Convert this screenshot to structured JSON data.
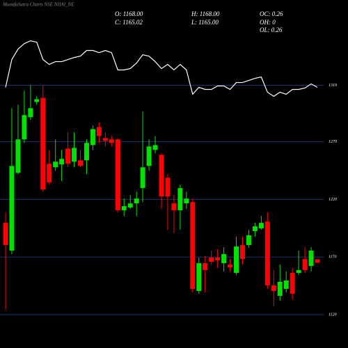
{
  "chart_data": {
    "type": "candlestick",
    "title": "MunafaSutra Charts NSE NHAI_NE",
    "info": [
      "O: 1168.00",
      "H: 1168.00",
      "OC: 0.26",
      "C: 1165.02",
      "L: 1165.00",
      "OH: 0",
      "OL: 0.26"
    ],
    "open": [
      1199.6,
      1175.5,
      1243,
      1272,
      1291.3,
      1304.5,
      1308.1,
      1250.9,
      1247.8,
      1250.3,
      1264.1,
      1252.7,
      1253.9,
      1253.9,
      1267.1,
      1282.8,
      1273.2,
      1272,
      1272,
      1210.5,
      1212.9,
      1216.5,
      1229.8,
      1249,
      1262.9,
      1258.7,
      1238.8,
      1216.5,
      1210.5,
      1216.5,
      1217.7,
      1140.5,
      1164.6,
      1169.5,
      1169.5,
      1164.6,
      1163.4,
      1156.2,
      1180.3,
      1180.3,
      1192.4,
      1194.8,
      1200.8,
      1145.3,
      1136.3,
      1142.3,
      1156.2,
      1156.2,
      1168.2,
      1162.2,
      1168
    ],
    "high": [
      1208.7,
      1299.1,
      1302.1,
      1314.2,
      1319,
      1309.4,
      1319,
      1262.9,
      1272,
      1262.9,
      1278,
      1278,
      1262.9,
      1272,
      1284,
      1287,
      1278,
      1275,
      1273.2,
      1220.7,
      1223.7,
      1226.7,
      1296.1,
      1272,
      1275,
      1259.9,
      1241.8,
      1223.7,
      1232.8,
      1226.7,
      1220.7,
      1169.5,
      1170.7,
      1175.5,
      1176.7,
      1178.5,
      1168.2,
      1187.5,
      1187.5,
      1193.6,
      1199.6,
      1205.6,
      1208.7,
      1158.6,
      1163.4,
      1157.4,
      1160.4,
      1175.5,
      1178.5,
      1178.5,
      1168
    ],
    "low": [
      1124.2,
      1172.5,
      1241.8,
      1269,
      1288.8,
      1302.1,
      1226.7,
      1232.8,
      1244.8,
      1235.8,
      1247.8,
      1247.8,
      1247.8,
      1241.8,
      1262.9,
      1269,
      1265.9,
      1265.9,
      1208.7,
      1205.6,
      1211.7,
      1205.6,
      1217.7,
      1244.8,
      1259.9,
      1211.7,
      1193.6,
      1190.6,
      1193.6,
      1211.7,
      1139.3,
      1138.1,
      1139.3,
      1163.4,
      1160.4,
      1157.4,
      1157.4,
      1154.4,
      1163.4,
      1177.9,
      1187.5,
      1193.6,
      1142.3,
      1127.2,
      1132.1,
      1139.3,
      1133.3,
      1154.4,
      1156.2,
      1157.4,
      1165
    ],
    "close": [
      1180.3,
      1249,
      1272,
      1293.1,
      1299.1,
      1306.9,
      1228.5,
      1234.6,
      1252.7,
      1255.1,
      1250.9,
      1264.7,
      1249,
      1269,
      1281,
      1275,
      1270.8,
      1269,
      1210.5,
      1214.1,
      1216.5,
      1220.7,
      1247.8,
      1265.9,
      1267.1,
      1222.5,
      1222.5,
      1210.5,
      1229.8,
      1220.7,
      1142.3,
      1164.6,
      1158.6,
      1165.8,
      1167,
      1172.5,
      1161,
      1179.1,
      1168.2,
      1188.8,
      1196.6,
      1199.6,
      1145.3,
      1140.5,
      1148.4,
      1149.6,
      1138.1,
      1158.6,
      1158.6,
      1175.5,
      1165.02
    ],
    "overlay_line": {
      "color": "#ffffff",
      "values": [
        1317.2,
        1341.3,
        1350.4,
        1355.2,
        1357.6,
        1356.4,
        1341.3,
        1337.1,
        1339.5,
        1339.5,
        1341.3,
        1343.1,
        1344.3,
        1349.2,
        1349.2,
        1347.3,
        1349.2,
        1347.3,
        1332.3,
        1332.3,
        1333.5,
        1338.3,
        1345.5,
        1344.3,
        1339.5,
        1333.5,
        1337.1,
        1332.3,
        1337.1,
        1332.3,
        1311.2,
        1317.2,
        1315.4,
        1315.4,
        1318.4,
        1318.4,
        1315.4,
        1321.4,
        1321.4,
        1323.2,
        1325,
        1326.2,
        1313,
        1309.4,
        1313,
        1311.2,
        1315.4,
        1315.4,
        1316.6,
        1320.2,
        1317.2
      ]
    },
    "up_color": "#00e000",
    "down_color": "#ff0000",
    "grid_color": "#1f2f73",
    "ylim": [
      1091,
      1393
    ],
    "yticks": [
      1120,
      1170,
      1220,
      1270,
      1319
    ],
    "grid": true
  }
}
